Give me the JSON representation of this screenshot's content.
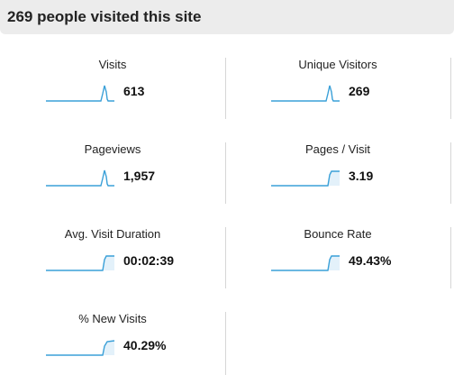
{
  "header": {
    "title": "269 people visited this site"
  },
  "metrics": [
    {
      "label": "Visits",
      "value": "613",
      "spark": "spike"
    },
    {
      "label": "Unique Visitors",
      "value": "269",
      "spark": "spike"
    },
    {
      "label": "Pageviews",
      "value": "1,957",
      "spark": "spike"
    },
    {
      "label": "Pages / Visit",
      "value": "3.19",
      "spark": "step"
    },
    {
      "label": "Avg. Visit Duration",
      "value": "00:02:39",
      "spark": "step"
    },
    {
      "label": "Bounce Rate",
      "value": "49.43%",
      "spark": "step"
    },
    {
      "label": "% New Visits",
      "value": "40.29%",
      "spark": "step"
    }
  ],
  "colors": {
    "spark_line": "#3aa0d8",
    "spark_fill": "#e3f1fa",
    "divider": "#d6d6d6",
    "header_bg": "#ececec"
  }
}
